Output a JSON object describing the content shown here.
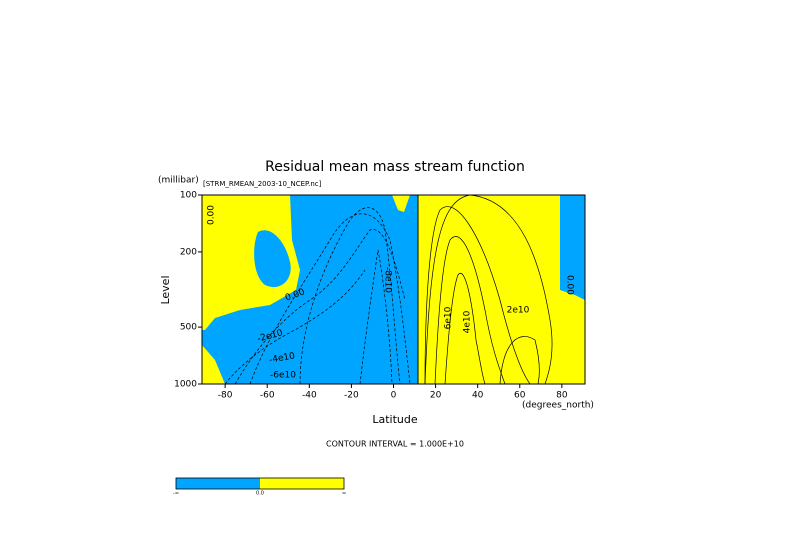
{
  "chart_data": {
    "type": "contour",
    "title": "Residual mean mass stream function",
    "source": "[STRM_RMEAN_2003-10_NCEP.nc]",
    "x_label": "Latitude",
    "x_unit": "(degrees_north)",
    "y_label": "Level",
    "y_unit": "(millibar)",
    "xlim": [
      -91,
      91
    ],
    "xticks": [
      -80,
      -60,
      -40,
      -20,
      0,
      20,
      40,
      60,
      80
    ],
    "ylim": [
      1000,
      100
    ],
    "yticks": [
      100,
      200,
      500,
      1000
    ],
    "log_y": true,
    "fill_colors": [
      "#00a5ff",
      "#ffff00"
    ],
    "contour_labels": [
      "0.00",
      "0.00",
      "-2e10",
      "-4e10",
      "-6e10",
      "-8e10",
      "6e10",
      "4e10",
      "2e10",
      "0.00"
    ],
    "contour_interval": "CONTOUR INTERVAL = 1.000E+10",
    "colorbar_labels": [
      "-∞",
      "0.0",
      "∞"
    ]
  }
}
